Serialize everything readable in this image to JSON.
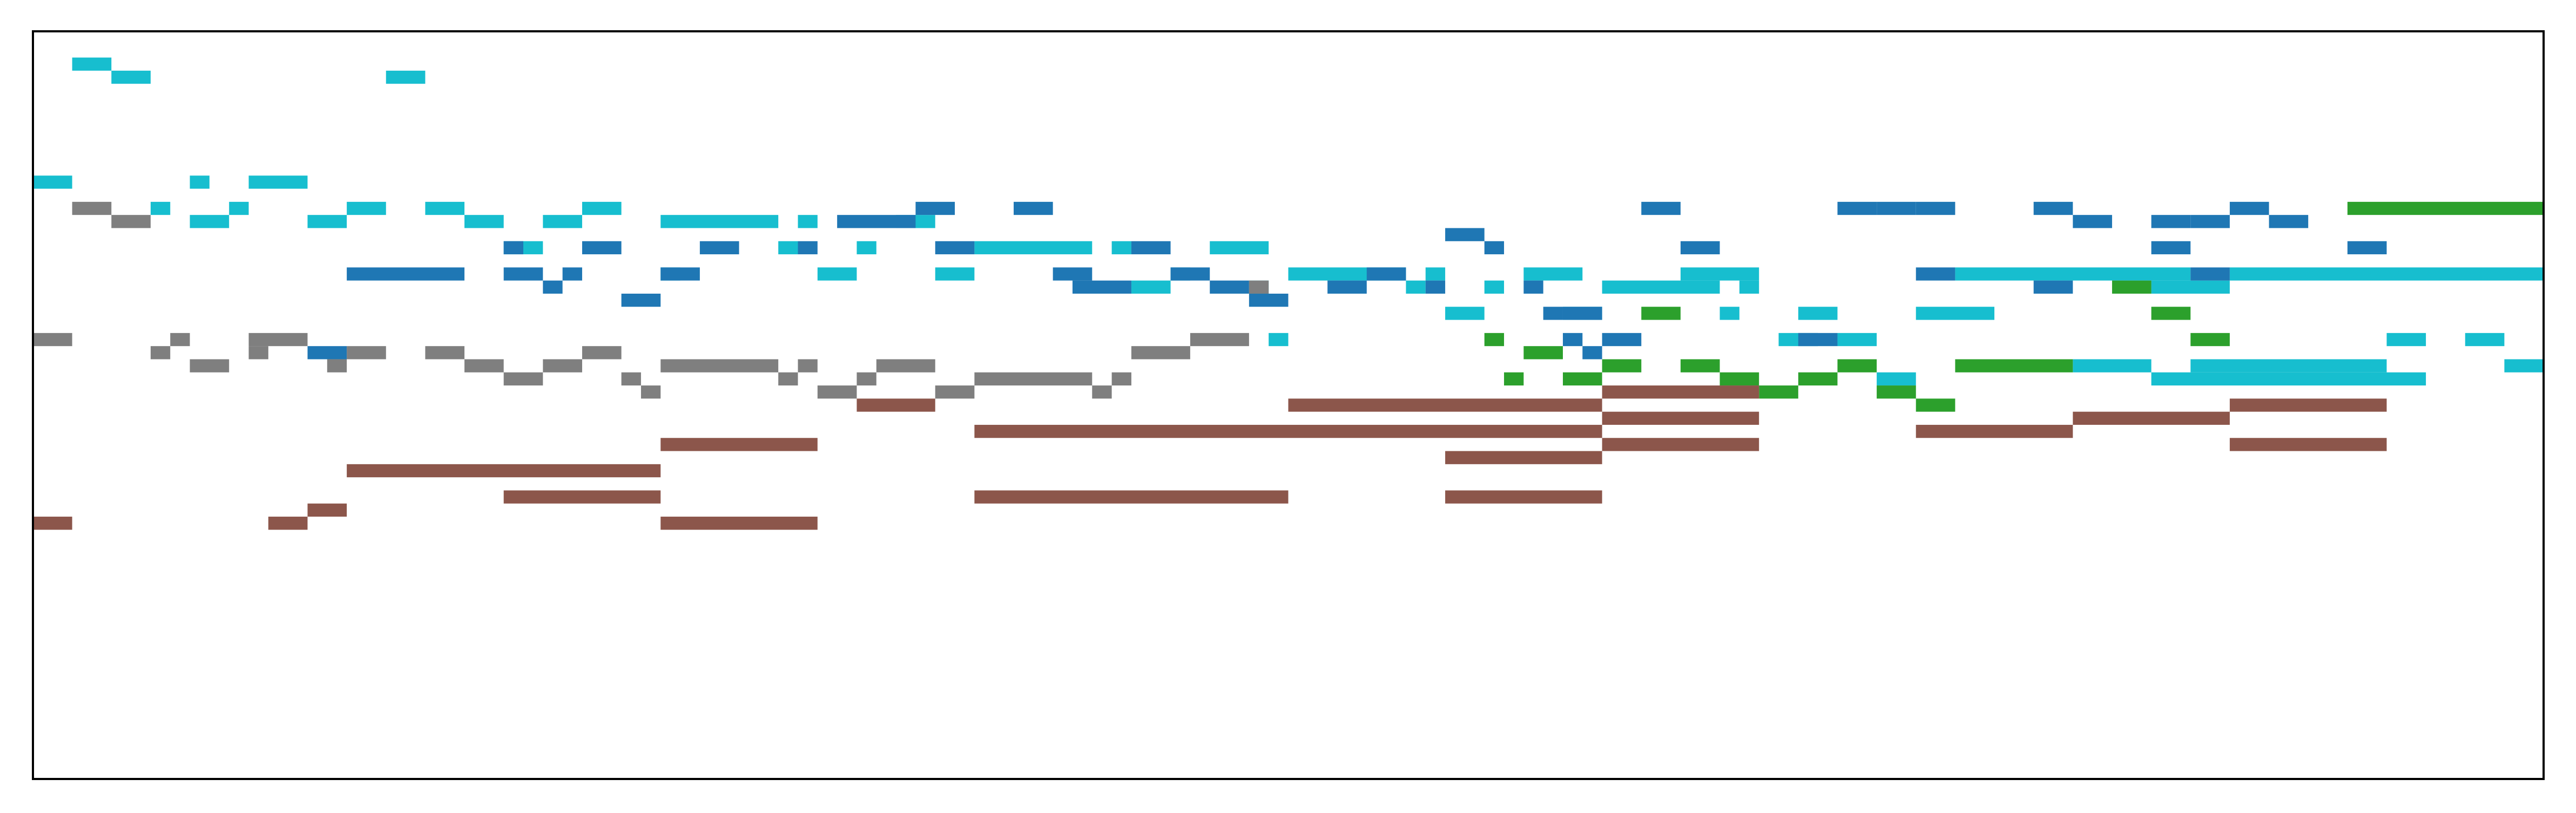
{
  "chart_data": {
    "type": "pianoroll",
    "title": "",
    "xlabel": "",
    "ylabel": "",
    "xlim": [
      0,
      64
    ],
    "ylim": [
      0,
      57
    ],
    "axes_ticks_visible": false,
    "grid": false,
    "legend": "none",
    "colors": {
      "cyan": "#17becf",
      "blue": "#1f77b4",
      "gray": "#7f7f7f",
      "green": "#2ca02c",
      "brown": "#8c564b"
    },
    "series": [
      {
        "color_key": "cyan",
        "notes": [
          [
            1,
            2,
            54
          ],
          [
            2,
            3,
            53
          ],
          [
            9,
            10,
            53
          ],
          [
            0,
            1,
            45
          ],
          [
            4,
            4.5,
            45
          ],
          [
            5.5,
            7,
            45
          ],
          [
            3,
            3.5,
            43
          ],
          [
            5,
            5.5,
            43
          ],
          [
            8,
            9,
            43
          ],
          [
            10,
            11,
            43
          ],
          [
            14,
            15,
            43
          ],
          [
            4,
            5,
            42
          ],
          [
            7,
            8,
            42
          ],
          [
            11,
            12,
            42
          ],
          [
            13,
            14,
            42
          ],
          [
            16,
            19,
            42
          ],
          [
            19.5,
            20,
            42
          ],
          [
            22,
            23,
            42
          ],
          [
            12,
            13,
            40
          ],
          [
            19,
            19.5,
            40
          ],
          [
            21,
            21.5,
            40
          ],
          [
            24,
            27,
            40
          ],
          [
            27.5,
            28,
            40
          ],
          [
            30,
            31.5,
            40
          ],
          [
            16,
            16.5,
            38
          ],
          [
            20,
            21,
            38
          ],
          [
            23,
            24,
            38
          ],
          [
            29,
            29.5,
            38
          ],
          [
            32,
            35,
            38
          ],
          [
            35.5,
            36,
            38
          ],
          [
            38,
            39.5,
            38
          ],
          [
            42,
            44,
            38
          ],
          [
            49,
            55,
            38
          ],
          [
            56,
            64,
            38
          ],
          [
            28,
            29,
            37
          ],
          [
            31,
            31.5,
            37
          ],
          [
            35,
            35.5,
            37
          ],
          [
            37,
            37.5,
            37
          ],
          [
            40,
            43,
            37
          ],
          [
            43.5,
            44,
            37
          ],
          [
            54,
            56,
            37
          ],
          [
            36,
            37,
            35
          ],
          [
            39,
            40,
            35
          ],
          [
            43,
            43.5,
            35
          ],
          [
            45,
            46,
            35
          ],
          [
            48,
            50,
            35
          ],
          [
            31.5,
            32,
            33
          ],
          [
            44.5,
            45.5,
            33
          ],
          [
            46,
            47,
            33
          ],
          [
            60,
            61,
            33
          ],
          [
            62,
            63,
            33
          ],
          [
            52,
            54,
            31
          ],
          [
            55,
            60,
            31
          ],
          [
            63,
            64,
            31
          ],
          [
            47,
            48,
            30
          ],
          [
            54,
            61,
            30
          ]
        ]
      },
      {
        "color_key": "blue",
        "notes": [
          [
            20.5,
            22.5,
            42
          ],
          [
            22.5,
            23.5,
            43
          ],
          [
            25,
            26,
            43
          ],
          [
            36,
            37,
            41
          ],
          [
            41,
            42,
            43
          ],
          [
            46,
            47,
            43
          ],
          [
            47,
            48,
            43
          ],
          [
            48,
            49,
            43
          ],
          [
            51,
            52,
            43
          ],
          [
            52,
            53,
            42
          ],
          [
            54,
            55,
            42
          ],
          [
            55,
            56,
            42
          ],
          [
            56,
            57,
            43
          ],
          [
            57,
            58,
            42
          ],
          [
            59,
            60,
            40
          ],
          [
            12,
            12.5,
            40
          ],
          [
            14,
            15,
            40
          ],
          [
            17,
            18,
            40
          ],
          [
            19.5,
            20,
            40
          ],
          [
            23,
            24,
            40
          ],
          [
            28,
            29,
            40
          ],
          [
            37,
            37.5,
            40
          ],
          [
            42,
            43,
            40
          ],
          [
            54,
            55,
            40
          ],
          [
            8,
            11,
            38
          ],
          [
            12,
            13,
            38
          ],
          [
            13.5,
            14,
            38
          ],
          [
            16,
            17,
            38
          ],
          [
            26,
            27,
            38
          ],
          [
            29,
            30,
            38
          ],
          [
            34,
            35,
            38
          ],
          [
            48,
            49,
            38
          ],
          [
            55,
            56,
            38
          ],
          [
            13,
            13.5,
            37
          ],
          [
            26.5,
            28,
            37
          ],
          [
            30,
            31,
            37
          ],
          [
            33,
            34,
            37
          ],
          [
            35.5,
            36,
            37
          ],
          [
            38,
            38.5,
            37
          ],
          [
            51,
            52,
            37
          ],
          [
            15,
            16,
            36
          ],
          [
            31,
            32,
            36
          ],
          [
            39,
            40,
            35
          ],
          [
            38.5,
            39,
            35
          ],
          [
            7,
            8,
            32
          ],
          [
            39,
            39.5,
            33
          ],
          [
            39.5,
            40,
            32
          ],
          [
            40,
            41,
            33
          ],
          [
            45,
            46,
            33
          ]
        ]
      },
      {
        "color_key": "gray",
        "notes": [
          [
            1,
            2,
            43
          ],
          [
            2,
            3,
            42
          ],
          [
            0,
            1,
            33
          ],
          [
            3.5,
            4,
            33
          ],
          [
            5.5,
            7,
            33
          ],
          [
            3,
            3.5,
            32
          ],
          [
            5.5,
            6,
            32
          ],
          [
            8,
            9,
            32
          ],
          [
            10,
            11,
            32
          ],
          [
            14,
            15,
            32
          ],
          [
            28,
            29.5,
            32
          ],
          [
            29.5,
            31,
            33
          ],
          [
            4,
            5,
            31
          ],
          [
            7.5,
            8,
            31
          ],
          [
            11,
            12,
            31
          ],
          [
            13,
            14,
            31
          ],
          [
            16,
            19,
            31
          ],
          [
            19.5,
            20,
            31
          ],
          [
            21.5,
            23,
            31
          ],
          [
            12,
            13,
            30
          ],
          [
            15,
            15.5,
            30
          ],
          [
            19,
            19.5,
            30
          ],
          [
            21,
            21.5,
            30
          ],
          [
            24,
            27,
            30
          ],
          [
            27.5,
            28,
            30
          ],
          [
            15.5,
            16,
            29
          ],
          [
            20,
            21,
            29
          ],
          [
            23,
            24,
            29
          ],
          [
            27,
            27.5,
            29
          ],
          [
            31,
            31.5,
            37
          ]
        ]
      },
      {
        "color_key": "green",
        "notes": [
          [
            59,
            64,
            43
          ],
          [
            53,
            54,
            37
          ],
          [
            41,
            42,
            35
          ],
          [
            54,
            55,
            35
          ],
          [
            37,
            37.5,
            33
          ],
          [
            55,
            56,
            33
          ],
          [
            38,
            39,
            32
          ],
          [
            40,
            41,
            31
          ],
          [
            42,
            43,
            31
          ],
          [
            46,
            47,
            31
          ],
          [
            49,
            52,
            31
          ],
          [
            37.5,
            38,
            30
          ],
          [
            39,
            40,
            30
          ],
          [
            43,
            44,
            30
          ],
          [
            45,
            46,
            30
          ],
          [
            44,
            45,
            29
          ],
          [
            47,
            48,
            29
          ],
          [
            48,
            49,
            28
          ]
        ]
      },
      {
        "color_key": "brown",
        "notes": [
          [
            40,
            44,
            29
          ],
          [
            21,
            23,
            28
          ],
          [
            32,
            40,
            28
          ],
          [
            40,
            44,
            27
          ],
          [
            52,
            56,
            27
          ],
          [
            56,
            60,
            28
          ],
          [
            24,
            40,
            26
          ],
          [
            48,
            52,
            26
          ],
          [
            16,
            20,
            25
          ],
          [
            40,
            44,
            25
          ],
          [
            56,
            60,
            25
          ],
          [
            36,
            40,
            24
          ],
          [
            8,
            16,
            23
          ],
          [
            12,
            16,
            21
          ],
          [
            24,
            32,
            21
          ],
          [
            36,
            40,
            21
          ],
          [
            7,
            8,
            20
          ],
          [
            0,
            1,
            19
          ],
          [
            6,
            7,
            19
          ],
          [
            16,
            20,
            19
          ]
        ]
      }
    ]
  }
}
